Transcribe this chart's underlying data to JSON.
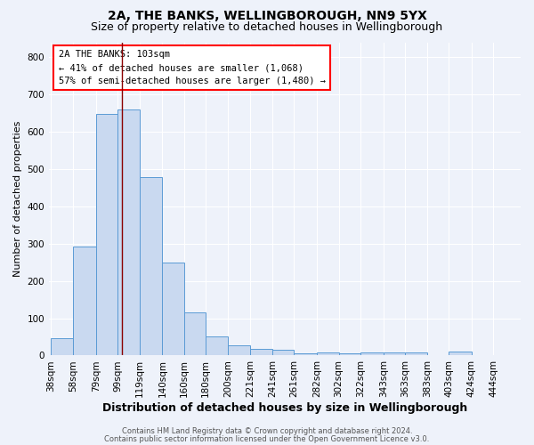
{
  "title1": "2A, THE BANKS, WELLINGBOROUGH, NN9 5YX",
  "title2": "Size of property relative to detached houses in Wellingborough",
  "xlabel": "Distribution of detached houses by size in Wellingborough",
  "ylabel": "Number of detached properties",
  "footer1": "Contains HM Land Registry data © Crown copyright and database right 2024.",
  "footer2": "Contains public sector information licensed under the Open Government Licence v3.0.",
  "categories": [
    "38sqm",
    "58sqm",
    "79sqm",
    "99sqm",
    "119sqm",
    "140sqm",
    "160sqm",
    "180sqm",
    "200sqm",
    "221sqm",
    "241sqm",
    "261sqm",
    "282sqm",
    "302sqm",
    "322sqm",
    "343sqm",
    "363sqm",
    "383sqm",
    "403sqm",
    "424sqm",
    "444sqm"
  ],
  "values": [
    47,
    293,
    648,
    660,
    478,
    250,
    115,
    52,
    28,
    17,
    16,
    7,
    8,
    7,
    8,
    8,
    9,
    2,
    10,
    2,
    0
  ],
  "bar_color": "#c9d9f0",
  "bar_edge_color": "#5b9bd5",
  "red_line_x": 103,
  "bin_edges": [
    38,
    58,
    79,
    99,
    119,
    140,
    160,
    180,
    200,
    221,
    241,
    261,
    282,
    302,
    322,
    343,
    363,
    383,
    403,
    424,
    444,
    464
  ],
  "annotation_lines": [
    "2A THE BANKS: 103sqm",
    "← 41% of detached houses are smaller (1,068)",
    "57% of semi-detached houses are larger (1,480) →"
  ],
  "ylim": [
    0,
    840
  ],
  "yticks": [
    0,
    100,
    200,
    300,
    400,
    500,
    600,
    700,
    800
  ],
  "bg_color": "#eef2fa",
  "grid_color": "#ffffff",
  "title1_fontsize": 10,
  "title2_fontsize": 9,
  "xlabel_fontsize": 9,
  "ylabel_fontsize": 8,
  "tick_fontsize": 7.5,
  "annotation_fontsize": 7.5,
  "footer_fontsize": 6
}
